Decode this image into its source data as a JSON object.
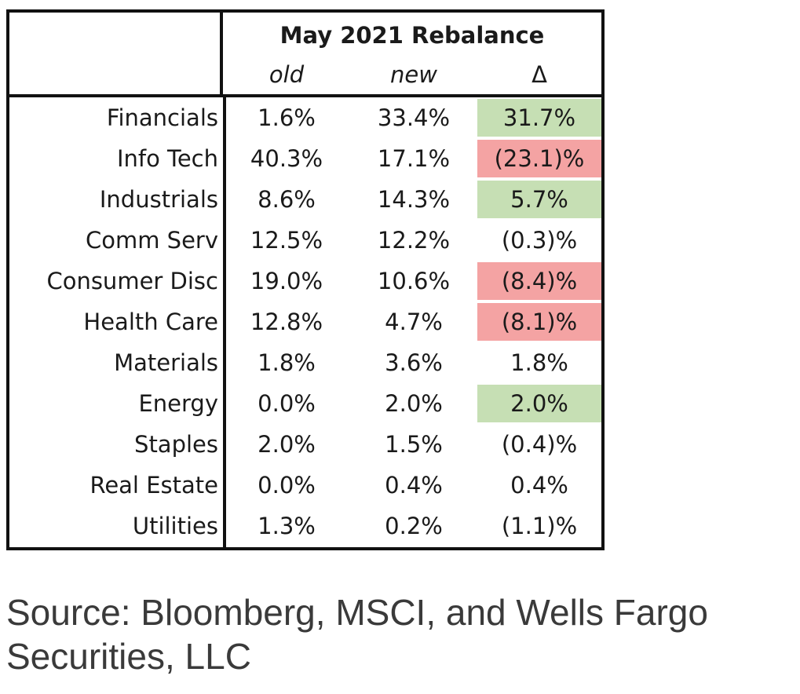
{
  "chart_data": {
    "type": "table",
    "title": "May 2021 Rebalance",
    "columns": [
      "old",
      "new",
      "Δ"
    ],
    "rows": [
      {
        "sector": "Financials",
        "old": "1.6%",
        "new": "33.4%",
        "delta": "31.7%",
        "highlight": "#c6dfb4"
      },
      {
        "sector": "Info Tech",
        "old": "40.3%",
        "new": "17.1%",
        "delta": "(23.1)%",
        "highlight": "#f4a3a3"
      },
      {
        "sector": "Industrials",
        "old": "8.6%",
        "new": "14.3%",
        "delta": "5.7%",
        "highlight": "#c6dfb4"
      },
      {
        "sector": "Comm Serv",
        "old": "12.5%",
        "new": "12.2%",
        "delta": "(0.3)%",
        "highlight": ""
      },
      {
        "sector": "Consumer Disc",
        "old": "19.0%",
        "new": "10.6%",
        "delta": "(8.4)%",
        "highlight": "#f4a3a3"
      },
      {
        "sector": "Health Care",
        "old": "12.8%",
        "new": "4.7%",
        "delta": "(8.1)%",
        "highlight": "#f4a3a3"
      },
      {
        "sector": "Materials",
        "old": "1.8%",
        "new": "3.6%",
        "delta": "1.8%",
        "highlight": ""
      },
      {
        "sector": "Energy",
        "old": "0.0%",
        "new": "2.0%",
        "delta": "2.0%",
        "highlight": "#c6dfb4"
      },
      {
        "sector": "Staples",
        "old": "2.0%",
        "new": "1.5%",
        "delta": "(0.4)%",
        "highlight": ""
      },
      {
        "sector": "Real Estate",
        "old": "0.0%",
        "new": "0.4%",
        "delta": "0.4%",
        "highlight": ""
      },
      {
        "sector": "Utilities",
        "old": "1.3%",
        "new": "0.2%",
        "delta": "(1.1)%",
        "highlight": ""
      }
    ]
  },
  "footnote": "Source: Bloomberg, MSCI, and Wells Fargo Securities, LLC"
}
